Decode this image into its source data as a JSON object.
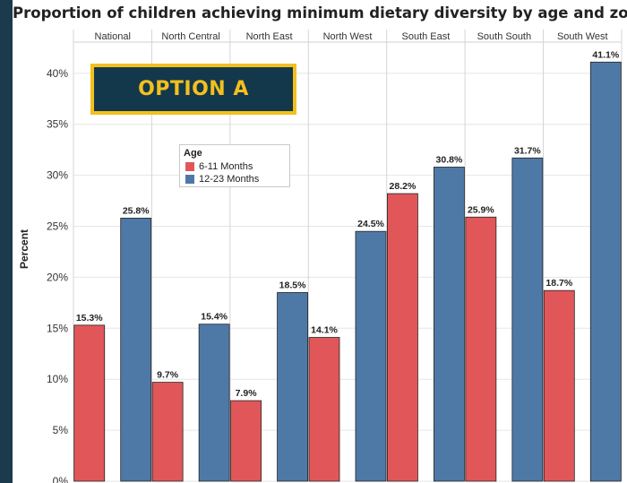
{
  "title": "Proportion of children achieving minimum dietary diversity by age and zone",
  "option_label": "OPTION A",
  "colors": {
    "series1": "#e15759",
    "series2": "#4e79a7",
    "accent": "#f2c01d",
    "frame": "#1b3a4b"
  },
  "chart_data": {
    "type": "bar",
    "categories": [
      "National",
      "North Central",
      "North East",
      "North West",
      "South East",
      "South South",
      "South West"
    ],
    "series": [
      {
        "name": "6-11 Months",
        "values": [
          15.3,
          9.7,
          7.9,
          14.1,
          28.2,
          25.9,
          18.7
        ]
      },
      {
        "name": "12-23 Months",
        "values": [
          25.8,
          15.4,
          18.5,
          24.5,
          30.8,
          31.7,
          41.1
        ]
      }
    ],
    "value_labels": [
      [
        "15.3%",
        "9.7%",
        "7.9%",
        "14.1%",
        "28.2%",
        "25.9%",
        "18.7%"
      ],
      [
        "25.8%",
        "15.4%",
        "18.5%",
        "24.5%",
        "30.8%",
        "31.7%",
        "41.1%"
      ]
    ],
    "ylabel": "Percent",
    "yticks": [
      0,
      5,
      10,
      15,
      20,
      25,
      30,
      35,
      40
    ],
    "ytick_labels": [
      "0%",
      "5%",
      "10%",
      "15%",
      "20%",
      "25%",
      "30%",
      "35%",
      "40%"
    ],
    "ylim": [
      0,
      42.5
    ],
    "legend": {
      "title": "Age",
      "placement": "upper-left"
    },
    "grid": true
  }
}
